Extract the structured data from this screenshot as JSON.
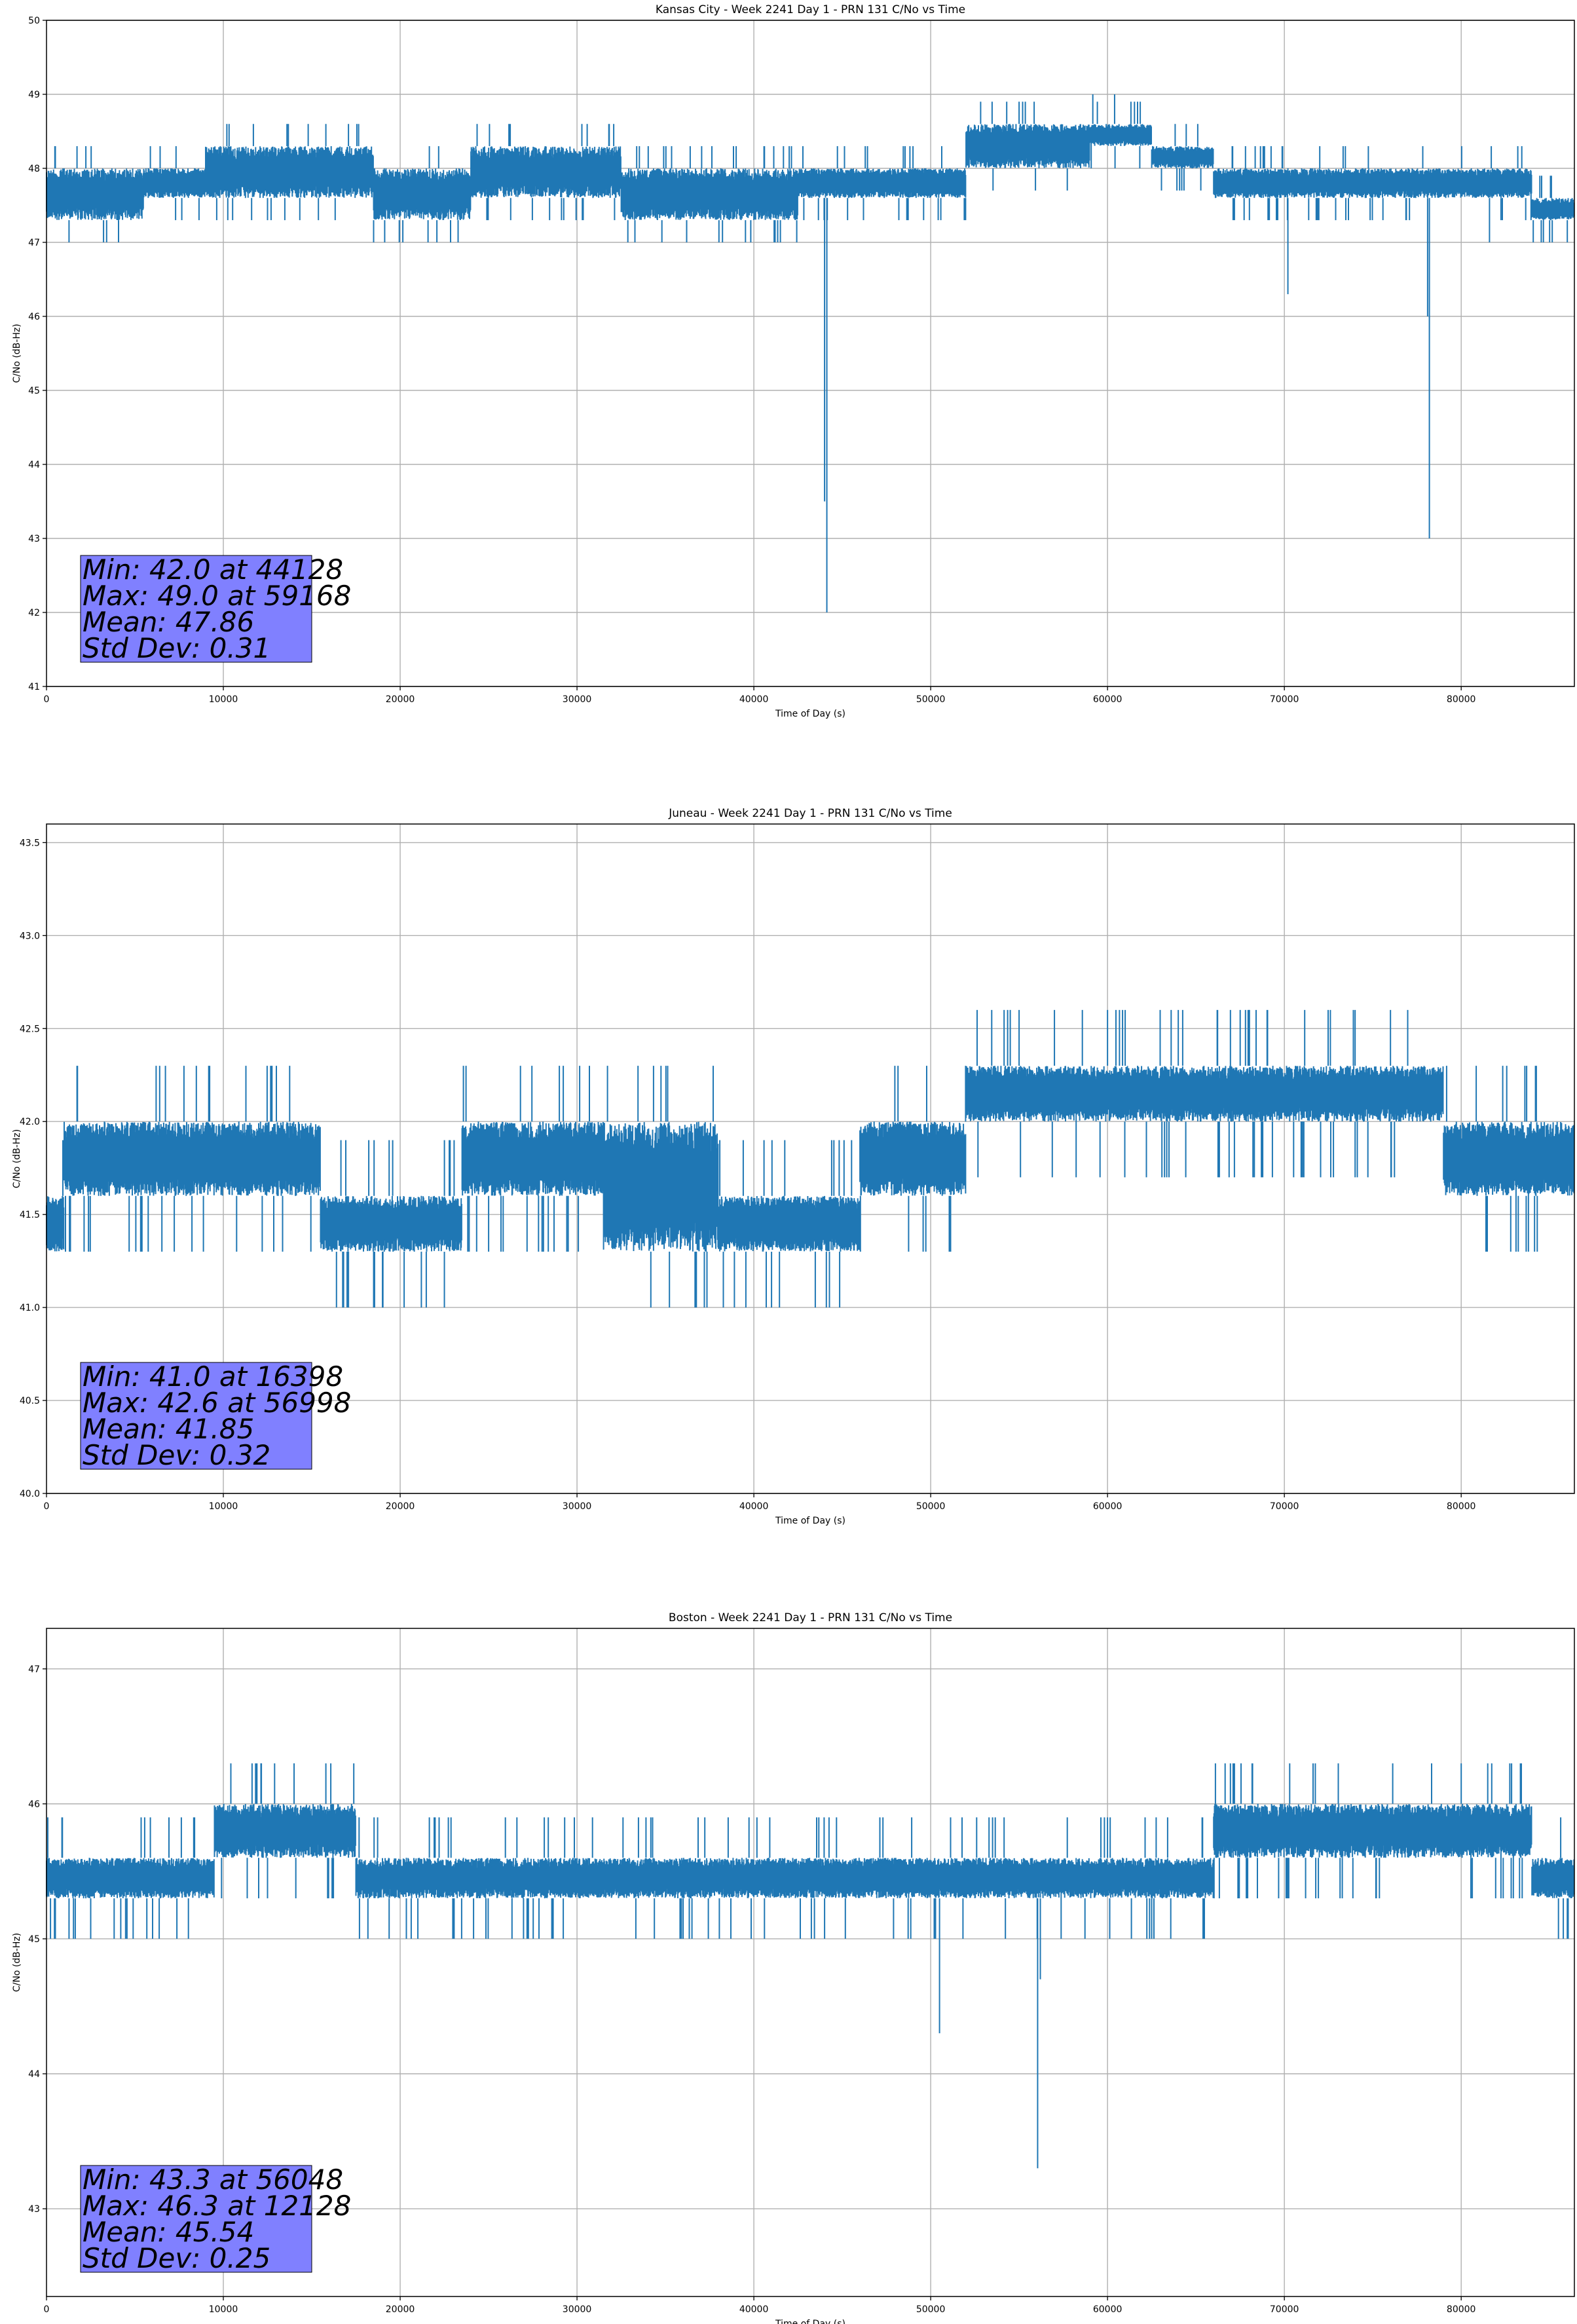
{
  "chart_data": [
    {
      "type": "line",
      "title": "Kansas City - Week 2241 Day 1 - PRN 131 C/No vs Time",
      "xlabel": "Time of Day (s)",
      "ylabel": "C/No (dB-Hz)",
      "xlim": [
        0,
        86400
      ],
      "ylim": [
        41,
        50
      ],
      "xticks": [
        0,
        10000,
        20000,
        30000,
        40000,
        50000,
        60000,
        70000,
        80000
      ],
      "xtick_labels": [
        "0",
        "10000",
        "20000",
        "30000",
        "40000",
        "50000",
        "60000",
        "70000",
        "80000"
      ],
      "yticks": [
        41,
        42,
        43,
        44,
        45,
        46,
        47,
        48,
        49,
        50
      ],
      "ytick_labels": [
        "41",
        "42",
        "43",
        "44",
        "45",
        "46",
        "47",
        "48",
        "49",
        "50"
      ],
      "grid": true,
      "color": "#1f77b4",
      "band_ranges": [
        {
          "x": [
            0,
            5500
          ],
          "y": [
            47.3,
            48.0
          ]
        },
        {
          "x": [
            5500,
            9000
          ],
          "y": [
            47.6,
            48.0
          ]
        },
        {
          "x": [
            9000,
            18500
          ],
          "y": [
            47.6,
            48.3
          ]
        },
        {
          "x": [
            18500,
            24000
          ],
          "y": [
            47.3,
            48.0
          ]
        },
        {
          "x": [
            24000,
            32500
          ],
          "y": [
            47.6,
            48.3
          ]
        },
        {
          "x": [
            32500,
            42500
          ],
          "y": [
            47.3,
            48.0
          ]
        },
        {
          "x": [
            42500,
            52000
          ],
          "y": [
            47.6,
            48.0
          ]
        },
        {
          "x": [
            52000,
            59000
          ],
          "y": [
            48.0,
            48.6
          ]
        },
        {
          "x": [
            59000,
            62500
          ],
          "y": [
            48.3,
            48.6
          ]
        },
        {
          "x": [
            62500,
            66000
          ],
          "y": [
            48.0,
            48.3
          ]
        },
        {
          "x": [
            66000,
            84000
          ],
          "y": [
            47.6,
            48.0
          ]
        },
        {
          "x": [
            84000,
            86400
          ],
          "y": [
            47.3,
            47.6
          ]
        }
      ],
      "outliers": [
        {
          "x": 44128,
          "y": 42.0
        },
        {
          "x": 44000,
          "y": 43.5
        },
        {
          "x": 78200,
          "y": 43.0
        },
        {
          "x": 78100,
          "y": 46.0
        },
        {
          "x": 70200,
          "y": 46.3
        },
        {
          "x": 59168,
          "y": 49.0
        },
        {
          "x": 60400,
          "y": 49.0
        },
        {
          "x": 81600,
          "y": 47.0
        },
        {
          "x": 86000,
          "y": 47.0
        },
        {
          "x": 7300,
          "y": 47.3
        },
        {
          "x": 12700,
          "y": 47.3
        }
      ],
      "stats": {
        "min": "Min: 42.0 at 44128",
        "max": "Max: 49.0 at 59168",
        "mean": "Mean: 47.86",
        "std": "Std Dev: 0.31"
      }
    },
    {
      "type": "line",
      "title": "Juneau - Week 2241 Day 1 - PRN 131 C/No vs Time",
      "xlabel": "Time of Day (s)",
      "ylabel": "C/No (dB-Hz)",
      "xlim": [
        0,
        86400
      ],
      "ylim": [
        40.0,
        43.6
      ],
      "xticks": [
        0,
        10000,
        20000,
        30000,
        40000,
        50000,
        60000,
        70000,
        80000
      ],
      "xtick_labels": [
        "0",
        "10000",
        "20000",
        "30000",
        "40000",
        "50000",
        "60000",
        "70000",
        "80000"
      ],
      "yticks": [
        40.0,
        40.5,
        41.0,
        41.5,
        42.0,
        42.5,
        43.0,
        43.5
      ],
      "ytick_labels": [
        "40.0",
        "40.5",
        "41.0",
        "41.5",
        "42.0",
        "42.5",
        "43.0",
        "43.5"
      ],
      "grid": true,
      "color": "#1f77b4",
      "band_ranges": [
        {
          "x": [
            0,
            1000
          ],
          "y": [
            41.3,
            41.6
          ]
        },
        {
          "x": [
            1000,
            15500
          ],
          "y": [
            41.6,
            42.0
          ]
        },
        {
          "x": [
            15500,
            23500
          ],
          "y": [
            41.3,
            41.6
          ]
        },
        {
          "x": [
            23500,
            31500
          ],
          "y": [
            41.6,
            42.0
          ]
        },
        {
          "x": [
            31500,
            38000
          ],
          "y": [
            41.3,
            42.0
          ]
        },
        {
          "x": [
            38000,
            46000
          ],
          "y": [
            41.3,
            41.6
          ]
        },
        {
          "x": [
            46000,
            52000
          ],
          "y": [
            41.6,
            42.0
          ]
        },
        {
          "x": [
            52000,
            58500
          ],
          "y": [
            42.0,
            42.3
          ]
        },
        {
          "x": [
            58500,
            79000
          ],
          "y": [
            42.0,
            42.3
          ]
        },
        {
          "x": [
            79000,
            86400
          ],
          "y": [
            41.6,
            42.0
          ]
        }
      ],
      "outliers": [
        {
          "x": 16398,
          "y": 41.0
        },
        {
          "x": 18500,
          "y": 41.0
        },
        {
          "x": 19000,
          "y": 41.0
        },
        {
          "x": 22500,
          "y": 41.0
        },
        {
          "x": 41000,
          "y": 41.0
        },
        {
          "x": 56998,
          "y": 42.6
        },
        {
          "x": 60000,
          "y": 42.6
        },
        {
          "x": 64000,
          "y": 42.6
        },
        {
          "x": 68000,
          "y": 42.6
        },
        {
          "x": 74000,
          "y": 42.6
        },
        {
          "x": 76000,
          "y": 42.6
        }
      ],
      "stats": {
        "min": "Min: 41.0 at 16398",
        "max": "Max: 42.6 at 56998",
        "mean": "Mean: 41.85",
        "std": "Std Dev: 0.32"
      }
    },
    {
      "type": "line",
      "title": "Boston - Week 2241 Day 1 - PRN 131 C/No vs Time",
      "xlabel": "Time of Day (s)",
      "ylabel": "C/No (dB-Hz)",
      "xlim": [
        0,
        86400
      ],
      "ylim": [
        42.35,
        47.3
      ],
      "xticks": [
        0,
        10000,
        20000,
        30000,
        40000,
        50000,
        60000,
        70000,
        80000
      ],
      "xtick_labels": [
        "0",
        "10000",
        "20000",
        "30000",
        "40000",
        "50000",
        "60000",
        "70000",
        "80000"
      ],
      "yticks": [
        43,
        44,
        45,
        46,
        47
      ],
      "ytick_labels": [
        "43",
        "44",
        "45",
        "46",
        "47"
      ],
      "grid": true,
      "color": "#1f77b4",
      "band_ranges": [
        {
          "x": [
            0,
            9500
          ],
          "y": [
            45.3,
            45.6
          ]
        },
        {
          "x": [
            9500,
            17500
          ],
          "y": [
            45.6,
            46.0
          ]
        },
        {
          "x": [
            17500,
            58500
          ],
          "y": [
            45.3,
            45.6
          ]
        },
        {
          "x": [
            58500,
            66000
          ],
          "y": [
            45.3,
            45.6
          ]
        },
        {
          "x": [
            66000,
            84000
          ],
          "y": [
            45.6,
            46.0
          ]
        },
        {
          "x": [
            84000,
            86400
          ],
          "y": [
            45.3,
            45.6
          ]
        }
      ],
      "outliers": [
        {
          "x": 56048,
          "y": 43.3
        },
        {
          "x": 50500,
          "y": 44.3
        },
        {
          "x": 56200,
          "y": 44.7
        },
        {
          "x": 12128,
          "y": 46.3
        },
        {
          "x": 14000,
          "y": 46.3
        },
        {
          "x": 2500,
          "y": 45.0
        },
        {
          "x": 6000,
          "y": 45.0
        },
        {
          "x": 21000,
          "y": 45.0
        },
        {
          "x": 36000,
          "y": 45.0
        },
        {
          "x": 85500,
          "y": 45.0
        }
      ],
      "stats": {
        "min": "Min: 43.3 at 56048",
        "max": "Max: 46.3 at 12128",
        "mean": "Mean: 45.54",
        "std": "Std Dev: 0.25"
      }
    }
  ]
}
